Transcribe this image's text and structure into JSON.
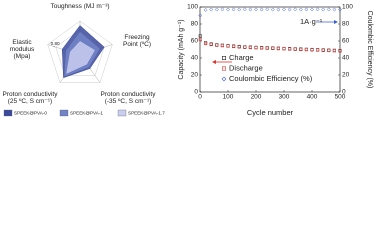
{
  "chart_data": [
    {
      "type": "radar",
      "axes": [
        {
          "label": [
            "Toughness (MJ m⁻³)"
          ],
          "lim": [
            0,
            3
          ]
        },
        {
          "label": [
            "Freezing",
            "Point (ºC)"
          ],
          "lim": [
            0,
            -40
          ]
        },
        {
          "label": [
            "Proton conductivity",
            "(-35 ºC, S cm⁻¹)"
          ],
          "lim": [
            0.0001,
            0.1
          ],
          "log": true
        },
        {
          "label": [
            "Proton conductivity",
            "(25 ºC, S cm⁻¹)"
          ],
          "lim": [
            0.0001,
            0.1
          ],
          "log": true
        },
        {
          "label": [
            "Elastic",
            "modulus",
            "(Mpa)"
          ],
          "lim": [
            0,
            1
          ],
          "ticks": [
            {
              "value": 0.8,
              "label": "0.80"
            }
          ]
        }
      ],
      "series": [
        {
          "name": "SPEEK@PVA-0",
          "color": "#3b4a9c",
          "values": [
            2.6,
            -30,
            0.003,
            0.03,
            0.55
          ]
        },
        {
          "name": "SPEEK@PVA-1",
          "color": "#7284c8",
          "values": [
            2.0,
            -24,
            0.002,
            0.02,
            0.42
          ]
        },
        {
          "name": "SPEEK@PVA-1.7",
          "color": "#c9cdee",
          "values": [
            1.2,
            -18,
            0.001,
            0.01,
            0.3
          ]
        }
      ]
    },
    {
      "type": "scatter",
      "xlabel": "Cycle number",
      "ylabel": "Capacity (mAh g⁻¹)",
      "y2label": "Coulombic Efficiency (%)",
      "annotation": "1A·g⁻¹",
      "x": [
        1,
        20,
        40,
        60,
        80,
        100,
        120,
        140,
        160,
        180,
        200,
        220,
        240,
        260,
        280,
        300,
        320,
        340,
        360,
        380,
        400,
        420,
        440,
        460,
        480,
        500
      ],
      "xlim": [
        0,
        500
      ],
      "xticks": [
        0,
        100,
        200,
        300,
        400,
        500
      ],
      "ylim": [
        0,
        100
      ],
      "yticks": [
        0,
        20,
        40,
        60,
        80,
        100
      ],
      "y2lim": [
        0,
        100
      ],
      "y2ticks": [
        0,
        20,
        40,
        60,
        80,
        100
      ],
      "series": [
        {
          "name": "Charge",
          "color": "#222222",
          "marker": "square",
          "values": [
            66,
            58,
            56.5,
            55.5,
            55,
            54.5,
            54,
            53.5,
            53,
            52.8,
            52.5,
            52.2,
            52,
            51.7,
            51.5,
            51.2,
            51,
            50.7,
            50.5,
            50.2,
            50,
            49.7,
            49.5,
            49.2,
            49,
            48.7
          ]
        },
        {
          "name": "Discharge",
          "color": "#e0302a",
          "marker": "square",
          "values": [
            62,
            57,
            55.8,
            55,
            54.5,
            54,
            53.5,
            53,
            52.6,
            52.3,
            52,
            51.8,
            51.5,
            51.3,
            51,
            50.8,
            50.5,
            50.3,
            50,
            49.8,
            49.5,
            49.3,
            49,
            48.8,
            48.5,
            48.3
          ]
        },
        {
          "name": "Coulombic Efficiency (%)",
          "color": "#3d5fd0",
          "marker": "diamond",
          "axis": "y2",
          "values": [
            90,
            96.5,
            97,
            97,
            97.2,
            97,
            97.1,
            97,
            97.2,
            97,
            97.1,
            97,
            97.2,
            97,
            97,
            97.1,
            97,
            97.2,
            97,
            97.1,
            97,
            97.2,
            97,
            97.1,
            97,
            97
          ]
        }
      ]
    }
  ]
}
